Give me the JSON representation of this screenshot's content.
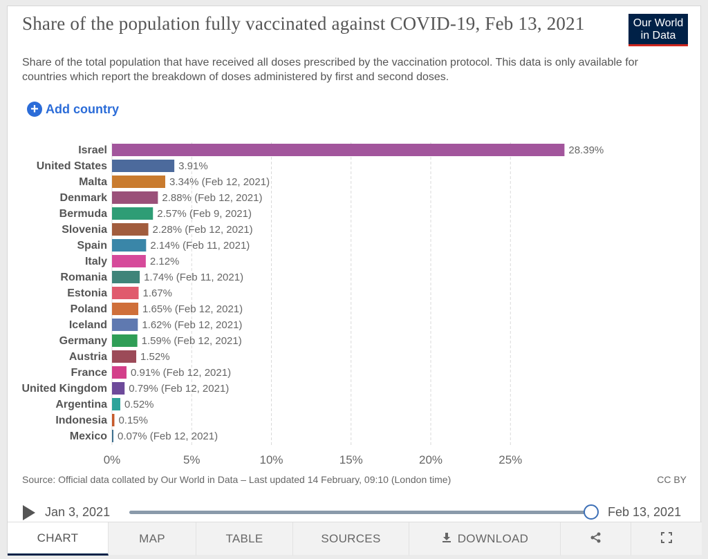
{
  "header": {
    "title": "Share of the population fully vaccinated against COVID-19, Feb 13, 2021",
    "subtitle": "Share of the total population that have received all doses prescribed by the vaccination protocol. This data is only available for countries which report the breakdown of doses administered by first and second doses.",
    "logo_line1": "Our World",
    "logo_line2": "in Data"
  },
  "controls": {
    "add_country_label": "Add country",
    "add_icon": "plus-circle-icon"
  },
  "chart_data": {
    "type": "bar",
    "orientation": "horizontal",
    "title": "Share of the population fully vaccinated against COVID-19, Feb 13, 2021",
    "xlim": [
      0,
      28.39
    ],
    "x_ticks": [
      0,
      5,
      10,
      15,
      20,
      25
    ],
    "x_tick_labels": [
      "0%",
      "5%",
      "10%",
      "15%",
      "20%",
      "25%"
    ],
    "grid": "vertical dashed",
    "categories": [
      "Israel",
      "United States",
      "Malta",
      "Denmark",
      "Bermuda",
      "Slovenia",
      "Spain",
      "Italy",
      "Romania",
      "Estonia",
      "Poland",
      "Iceland",
      "Germany",
      "Austria",
      "France",
      "United Kingdom",
      "Argentina",
      "Indonesia",
      "Mexico"
    ],
    "values": [
      28.39,
      3.91,
      3.34,
      2.88,
      2.57,
      2.28,
      2.14,
      2.12,
      1.74,
      1.67,
      1.65,
      1.62,
      1.59,
      1.52,
      0.91,
      0.79,
      0.52,
      0.15,
      0.07
    ],
    "value_labels": [
      "28.39%",
      "3.91%",
      "3.34% (Feb 12, 2021)",
      "2.88% (Feb 12, 2021)",
      "2.57% (Feb 9, 2021)",
      "2.28% (Feb 12, 2021)",
      "2.14% (Feb 11, 2021)",
      "2.12%",
      "1.74% (Feb 11, 2021)",
      "1.67%",
      "1.65% (Feb 12, 2021)",
      "1.62% (Feb 12, 2021)",
      "1.59% (Feb 12, 2021)",
      "1.52%",
      "0.91% (Feb 12, 2021)",
      "0.79% (Feb 12, 2021)",
      "0.52%",
      "0.15%",
      "0.07% (Feb 12, 2021)"
    ],
    "colors": [
      "#a2559c",
      "#4c6a9c",
      "#c97b2e",
      "#9a5079",
      "#2e9d75",
      "#a15c3d",
      "#3a86a8",
      "#d64a9a",
      "#3f8479",
      "#e05a6d",
      "#cf6f3a",
      "#5f79b0",
      "#2f9e56",
      "#9c4a58",
      "#d33f8a",
      "#6d4a9a",
      "#2ea39a",
      "#c65a2b",
      "#3d6f8e"
    ]
  },
  "footer": {
    "source": "Source: Official data collated by Our World in Data – Last updated 14 February, 09:10 (London time)",
    "license": "CC BY"
  },
  "timeline": {
    "start_date": "Jan 3, 2021",
    "end_date": "Feb 13, 2021",
    "position": 1.0,
    "play_icon": "play-icon"
  },
  "tabs": [
    {
      "label": "CHART",
      "active": true
    },
    {
      "label": "MAP"
    },
    {
      "label": "TABLE"
    },
    {
      "label": "SOURCES"
    },
    {
      "label": "DOWNLOAD",
      "icon": "download-icon"
    },
    {
      "label": "",
      "icon": "share-icon"
    },
    {
      "label": "",
      "icon": "fullscreen-icon"
    }
  ]
}
